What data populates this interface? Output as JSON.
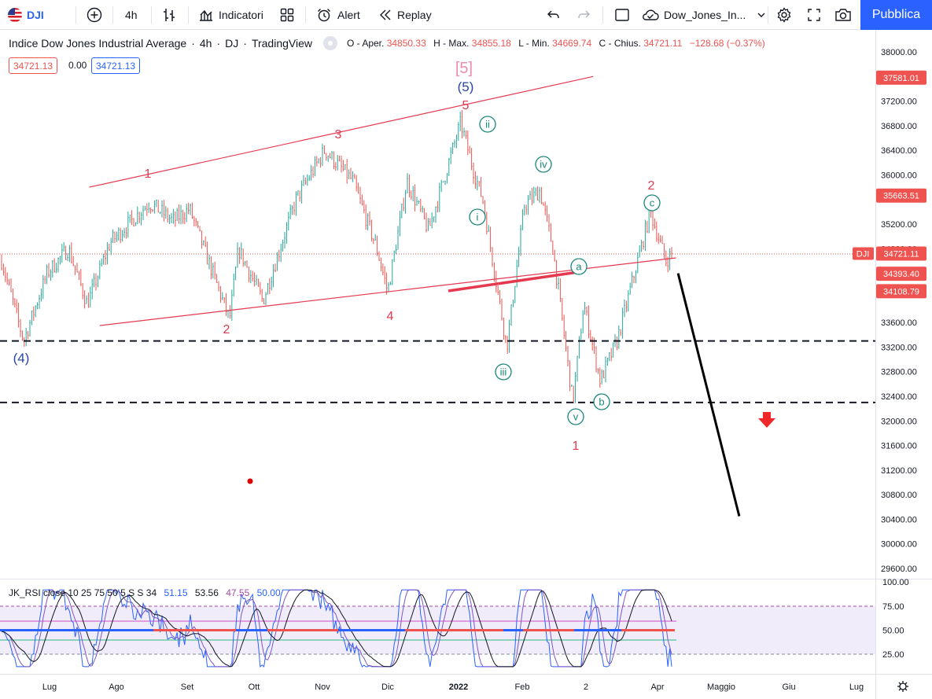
{
  "toolbar": {
    "symbol": "DJI",
    "interval": "4h",
    "indicators_label": "Indicatori",
    "alert_label": "Alert",
    "replay_label": "Replay",
    "layout_name": "Dow_Jones_In...",
    "publish_label": "Pubblica",
    "icons": [
      "flag-us-icon",
      "plus-circle-icon",
      "bar-style-icon",
      "indicators-icon",
      "templates-icon",
      "alarm-clock-icon",
      "replay-icon",
      "undo-icon",
      "redo-icon",
      "square-icon",
      "cloud-icon",
      "chevron-down-icon",
      "gear-icon",
      "fullscreen-icon",
      "camera-icon"
    ]
  },
  "legend": {
    "title": "Indice Dow Jones Industrial Average",
    "interval": "4h",
    "exchange": "DJ",
    "source": "TradingView",
    "open_label": "O - Aper.",
    "open_value": "34850.33",
    "high_label": "H - Max.",
    "high_value": "34855.18",
    "low_label": "L - Min.",
    "low_value": "34669.74",
    "close_label": "C - Chius.",
    "close_value": "34721.11",
    "change": "−128.68 (−0.37%)",
    "bid": "34721.13",
    "spread": "0.00",
    "ask": "34721.13"
  },
  "rsi_legend": {
    "label": "JK_RSI close 10 25 75 50 5 S S 34",
    "v1": "51.15",
    "v2": "53.56",
    "v3": "47.55",
    "v4": "50.00"
  },
  "price_axis": {
    "ticks": [
      "38000.00",
      "37200.00",
      "36800.00",
      "36400.00",
      "36000.00",
      "35200.00",
      "34800.00",
      "33600.00",
      "33200.00",
      "32800.00",
      "32400.00",
      "32000.00",
      "31600.00",
      "31200.00",
      "30800.00",
      "30400.00",
      "30000.00",
      "29600.00"
    ],
    "badges": [
      {
        "label": "",
        "value": "37581.01"
      },
      {
        "label": "",
        "value": "35663.51"
      },
      {
        "label": "DJI",
        "value": "34721.11"
      },
      {
        "label": "",
        "value": "34393.40"
      },
      {
        "label": "",
        "value": "34108.79"
      }
    ]
  },
  "rsi_axis": {
    "ticks": [
      "100.00",
      "75.00",
      "50.00",
      "25.00"
    ]
  },
  "time_axis": {
    "labels": [
      "Lug",
      "Ago",
      "Set",
      "Ott",
      "Nov",
      "Dic",
      "2022",
      "Feb",
      "2",
      "Apr",
      "Maggio",
      "Giu",
      "Lug"
    ]
  },
  "waves": {
    "primary_top": "[5]",
    "intermediate_top": "(5)",
    "intermediate_low": "(4)",
    "minor": [
      "1",
      "2",
      "3",
      "4",
      "5",
      "1",
      "2"
    ],
    "minute": [
      "i",
      "ii",
      "iii",
      "iv",
      "v",
      "a",
      "b",
      "c"
    ]
  },
  "colors": {
    "up": "#26a69a",
    "down": "#ef5350",
    "wave_red": "#e53950",
    "wave_blue": "#2945a8",
    "wave_green": "#16877a",
    "accent": "#2962ff"
  },
  "chart_data": {
    "type": "candlestick",
    "symbol": "DJI",
    "interval": "4h",
    "ylim": [
      29400,
      38200
    ],
    "close_path": [
      {
        "date": "2021-06-10",
        "price": 34700
      },
      {
        "date": "2021-06-20",
        "price": 33300
      },
      {
        "date": "2021-06-30",
        "price": 34400
      },
      {
        "date": "2021-07-10",
        "price": 34800
      },
      {
        "date": "2021-07-19",
        "price": 33900
      },
      {
        "date": "2021-07-30",
        "price": 34900
      },
      {
        "date": "2021-08-16",
        "price": 35550
      },
      {
        "date": "2021-08-26",
        "price": 35250
      },
      {
        "date": "2021-09-02",
        "price": 35450
      },
      {
        "date": "2021-09-20",
        "price": 33650
      },
      {
        "date": "2021-09-24",
        "price": 34800
      },
      {
        "date": "2021-10-05",
        "price": 33950
      },
      {
        "date": "2021-10-20",
        "price": 35600
      },
      {
        "date": "2021-11-02",
        "price": 36400
      },
      {
        "date": "2021-11-15",
        "price": 35900
      },
      {
        "date": "2021-11-26",
        "price": 34800
      },
      {
        "date": "2021-12-01",
        "price": 34100
      },
      {
        "date": "2021-12-10",
        "price": 35900
      },
      {
        "date": "2021-12-20",
        "price": 35100
      },
      {
        "date": "2022-01-04",
        "price": 36850
      },
      {
        "date": "2022-01-10",
        "price": 36050
      },
      {
        "date": "2022-01-14",
        "price": 35600
      },
      {
        "date": "2022-01-25",
        "price": 33200
      },
      {
        "date": "2022-02-02",
        "price": 35500
      },
      {
        "date": "2022-02-09",
        "price": 35750
      },
      {
        "date": "2022-02-15",
        "price": 34800
      },
      {
        "date": "2022-02-24",
        "price": 32300
      },
      {
        "date": "2022-03-01",
        "price": 33900
      },
      {
        "date": "2022-03-08",
        "price": 32650
      },
      {
        "date": "2022-03-15",
        "price": 33300
      },
      {
        "date": "2022-03-29",
        "price": 35400
      },
      {
        "date": "2022-04-05",
        "price": 34600
      },
      {
        "date": "2022-04-08",
        "price": 34721
      }
    ],
    "horizontal_levels": [
      33300,
      32300
    ],
    "channel_upper": [
      {
        "date": "2021-07-20",
        "price": 35800
      },
      {
        "date": "2022-03-05",
        "price": 37600
      }
    ],
    "channel_lower": [
      {
        "date": "2021-07-25",
        "price": 33550
      },
      {
        "date": "2022-04-10",
        "price": 34650
      }
    ],
    "projection": [
      {
        "date": "2022-04-11",
        "price": 34400
      },
      {
        "date": "2022-05-10",
        "price": 30450
      }
    ],
    "rsi_levels": [
      75,
      50,
      25
    ]
  }
}
